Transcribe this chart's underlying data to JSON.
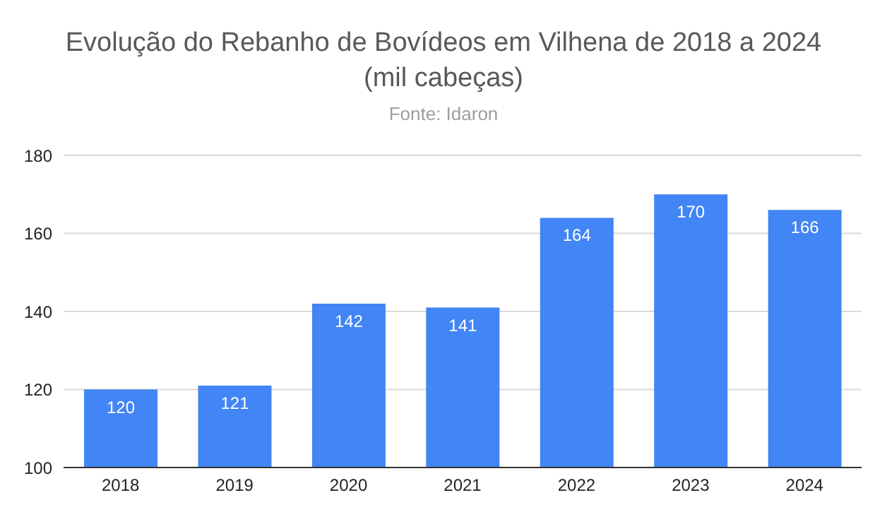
{
  "chart_data": {
    "type": "bar",
    "title": "Evolução do Rebanho de Bovídeos em Vilhena de 2018 a 2024 (mil cabeças)",
    "subtitle": "Fonte: Idaron",
    "categories": [
      "2018",
      "2019",
      "2020",
      "2021",
      "2022",
      "2023",
      "2024"
    ],
    "values": [
      120,
      121,
      142,
      141,
      164,
      170,
      166
    ],
    "color": "#4285f4",
    "ylim": [
      100,
      180
    ],
    "yticks": [
      100,
      120,
      140,
      160,
      180
    ],
    "grid": "y",
    "data_labels": true
  }
}
